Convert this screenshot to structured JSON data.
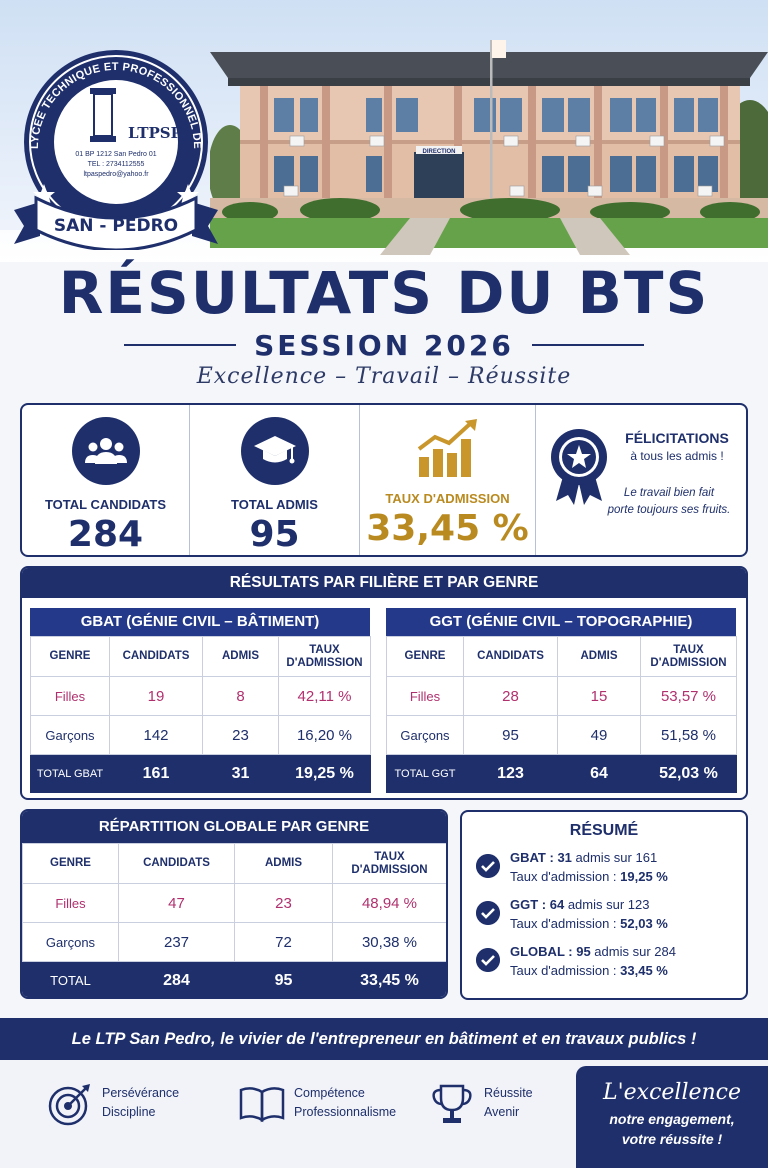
{
  "logo": {
    "arc_text": "LYCEE TECHNIQUE ET PROFESSIONNEL DE",
    "monogram": "LTPSP",
    "address": "01 BP 1212 San Pedro 01",
    "tel": "TEL : 2734112555",
    "email": "ltpaspedro@yahoo.fr",
    "ribbon": "SAN - PEDRO"
  },
  "building_sign": "DIRECTION",
  "title": "RÉSULTATS DU BTS",
  "session": "SESSION 2026",
  "motto": "Excellence – Travail – Réussite",
  "stats": {
    "candidats_label": "TOTAL CANDIDATS",
    "candidats_value": "284",
    "admis_label": "TOTAL ADMIS",
    "admis_value": "95",
    "taux_label": "TAUX D'ADMISSION",
    "taux_value": "33,45 %",
    "felicitations_title": "FÉLICITATIONS",
    "felicitations_sub": "à tous les admis !",
    "felicitations_note1": "Le travail bien fait",
    "felicitations_note2": "porte toujours ses fruits."
  },
  "filiere_panel": {
    "title": "RÉSULTATS PAR FILIÈRE ET PAR GENRE",
    "headers": [
      "GENRE",
      "CANDIDATS",
      "ADMIS",
      "TAUX",
      "D'ADMISSION"
    ],
    "gbat": {
      "title": "GBAT (GÉNIE CIVIL – BÂTIMENT)",
      "filles": [
        "Filles",
        "19",
        "8",
        "42,11 %"
      ],
      "garcons": [
        "Garçons",
        "142",
        "23",
        "16,20 %"
      ],
      "total": [
        "TOTAL GBAT",
        "161",
        "31",
        "19,25 %"
      ]
    },
    "ggt": {
      "title": "GGT (GÉNIE CIVIL – TOPOGRAPHIE)",
      "filles": [
        "Filles",
        "28",
        "15",
        "53,57 %"
      ],
      "garcons": [
        "Garçons",
        "95",
        "49",
        "51,58 %"
      ],
      "total": [
        "TOTAL GGT",
        "123",
        "64",
        "52,03 %"
      ]
    }
  },
  "global": {
    "title": "RÉPARTITION GLOBALE PAR GENRE",
    "filles": [
      "Filles",
      "47",
      "23",
      "48,94 %"
    ],
    "garcons": [
      "Garçons",
      "237",
      "72",
      "30,38 %"
    ],
    "total": [
      "TOTAL",
      "284",
      "95",
      "33,45 %"
    ]
  },
  "resume": {
    "title": "RÉSUMÉ",
    "items": [
      {
        "name": "GBAT :",
        "admis": "31",
        "rest": " admis sur 161",
        "taux_label": "Taux d'admission : ",
        "taux": "19,25 %"
      },
      {
        "name": "GGT :",
        "admis": "64",
        "rest": " admis sur 123",
        "taux_label": "Taux d'admission : ",
        "taux": "52,03 %"
      },
      {
        "name": "GLOBAL :",
        "admis": "95",
        "rest": " admis sur 284",
        "taux_label": "Taux d'admission : ",
        "taux": "33,45 %"
      }
    ]
  },
  "banner": "Le LTP San Pedro, le vivier de l'entrepreneur en bâtiment et en travaux publics !",
  "footer": {
    "v1a": "Persévérance",
    "v1b": "Discipline",
    "v2a": "Compétence",
    "v2b": "Professionnalisme",
    "v3a": "Réussite",
    "v3b": "Avenir",
    "ex1": "L'excellence",
    "ex2": "notre engagement,",
    "ex3": "votre réussite !"
  },
  "colors": {
    "navy": "#1e2f6b",
    "gold": "#b98a1f",
    "pink": "#b0306e"
  }
}
